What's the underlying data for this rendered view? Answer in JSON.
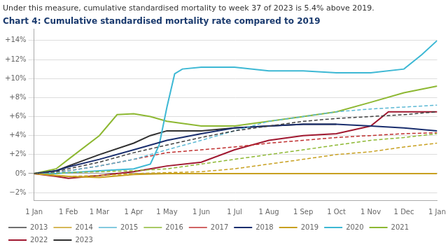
{
  "chart_data": {
    "type": "line",
    "subtitle": "Under this measure, cumulative standardised mortality to week 37 of 2023 is 5.4% above 2019.",
    "title": "Chart 4: Cumulative standardised mortality rate compared to 2019",
    "xlim": [
      0,
      364
    ],
    "xticks": [
      {
        "value": 0,
        "label": "1 Jan"
      },
      {
        "value": 31,
        "label": "1 Feb"
      },
      {
        "value": 59,
        "label": "1 Mar"
      },
      {
        "value": 90,
        "label": "1 Apr"
      },
      {
        "value": 120,
        "label": "1 May"
      },
      {
        "value": 151,
        "label": "1 Jun"
      },
      {
        "value": 181,
        "label": "1 Jul"
      },
      {
        "value": 212,
        "label": "1 Aug"
      },
      {
        "value": 243,
        "label": "1 Sep"
      },
      {
        "value": 273,
        "label": "1 Oct"
      },
      {
        "value": 304,
        "label": "1 Nov"
      },
      {
        "value": 334,
        "label": "1 Dec"
      },
      {
        "value": 364,
        "label": "1 Jan"
      }
    ],
    "ylim": [
      -2.8,
      15.2
    ],
    "yticks": [
      {
        "value": -2,
        "label": "−2%"
      },
      {
        "value": 0,
        "label": "0%"
      },
      {
        "value": 2,
        "label": "+2%"
      },
      {
        "value": 4,
        "label": "+4%"
      },
      {
        "value": 6,
        "label": "+6%"
      },
      {
        "value": 8,
        "label": "+8%"
      },
      {
        "value": 10,
        "label": "+10%"
      },
      {
        "value": 12,
        "label": "+12%"
      },
      {
        "value": 14,
        "label": "+14%"
      }
    ],
    "grid": true,
    "legend": "bottom",
    "series": [
      {
        "name": "2013",
        "color": "#404040",
        "line_style": "dashed",
        "x": [
          0,
          20,
          31,
          59,
          90,
          120,
          151,
          181,
          212,
          243,
          273,
          304,
          334,
          364
        ],
        "values": [
          0,
          0.2,
          0.5,
          1.2,
          2.2,
          3.0,
          3.8,
          4.5,
          5.0,
          5.5,
          5.8,
          6.0,
          6.2,
          6.5
        ]
      },
      {
        "name": "2014",
        "color": "#c8a020",
        "line_style": "dashed",
        "x": [
          0,
          20,
          31,
          59,
          90,
          120,
          151,
          181,
          212,
          243,
          273,
          304,
          334,
          364
        ],
        "values": [
          0,
          -0.2,
          -0.3,
          -0.2,
          0.0,
          0.1,
          0.2,
          0.5,
          1.0,
          1.5,
          2.0,
          2.3,
          2.8,
          3.2
        ]
      },
      {
        "name": "2015",
        "color": "#5bb8d4",
        "line_style": "dashed",
        "x": [
          0,
          20,
          31,
          59,
          90,
          120,
          151,
          181,
          212,
          243,
          273,
          304,
          334,
          364
        ],
        "values": [
          0,
          0.1,
          0.3,
          0.8,
          1.5,
          2.5,
          3.5,
          4.5,
          5.5,
          6.0,
          6.5,
          6.8,
          7.0,
          7.2
        ]
      },
      {
        "name": "2016",
        "color": "#8db832",
        "line_style": "dashed",
        "x": [
          0,
          20,
          31,
          59,
          90,
          120,
          151,
          181,
          212,
          243,
          273,
          304,
          334,
          364
        ],
        "values": [
          0,
          0.0,
          0.1,
          0.2,
          0.3,
          0.5,
          1.0,
          1.5,
          2.0,
          2.5,
          3.0,
          3.5,
          3.8,
          4.2
        ]
      },
      {
        "name": "2017",
        "color": "#c03030",
        "line_style": "dashed",
        "x": [
          0,
          20,
          31,
          59,
          90,
          120,
          151,
          181,
          212,
          243,
          273,
          304,
          334,
          364
        ],
        "values": [
          0,
          0.1,
          0.3,
          0.8,
          1.5,
          2.2,
          2.5,
          2.8,
          3.2,
          3.5,
          3.8,
          4.0,
          4.2,
          4.3
        ]
      },
      {
        "name": "2018",
        "color": "#1a2e6e",
        "line_style": "solid",
        "x": [
          0,
          20,
          31,
          59,
          90,
          120,
          151,
          181,
          212,
          243,
          273,
          304,
          334,
          364
        ],
        "values": [
          0,
          0.3,
          0.7,
          1.5,
          2.5,
          3.5,
          4.2,
          4.8,
          5.0,
          5.2,
          5.2,
          5.0,
          4.8,
          4.5
        ]
      },
      {
        "name": "2019",
        "color": "#c8a020",
        "line_style": "solid",
        "x": [
          0,
          20,
          31,
          59,
          90,
          120,
          151,
          181,
          212,
          243,
          273,
          304,
          334,
          364
        ],
        "values": [
          0,
          -0.2,
          -0.3,
          -0.4,
          -0.1,
          0.0,
          0.0,
          0.0,
          0.0,
          0.0,
          0.0,
          0.0,
          0.0,
          0.0
        ]
      },
      {
        "name": "2020",
        "color": "#3db8d4",
        "line_style": "solid",
        "x": [
          0,
          20,
          31,
          59,
          90,
          105,
          113,
          120,
          127,
          134,
          151,
          181,
          212,
          243,
          273,
          304,
          334,
          350,
          364
        ],
        "values": [
          0,
          0.0,
          0.1,
          0.3,
          0.5,
          1.0,
          3.0,
          7.0,
          10.5,
          11.0,
          11.2,
          11.2,
          10.8,
          10.8,
          10.6,
          10.6,
          11.0,
          12.5,
          14.0
        ]
      },
      {
        "name": "2021",
        "color": "#8db832",
        "line_style": "solid",
        "x": [
          0,
          20,
          31,
          59,
          75,
          90,
          105,
          120,
          151,
          181,
          212,
          243,
          273,
          304,
          334,
          364
        ],
        "values": [
          0,
          0.5,
          1.5,
          4.0,
          6.2,
          6.3,
          6.0,
          5.5,
          5.0,
          5.0,
          5.5,
          6.0,
          6.5,
          7.5,
          8.5,
          9.2
        ]
      },
      {
        "name": "2022",
        "color": "#a01830",
        "line_style": "solid",
        "x": [
          0,
          20,
          31,
          59,
          90,
          105,
          120,
          151,
          181,
          212,
          243,
          273,
          304,
          320,
          334,
          364
        ],
        "values": [
          0,
          -0.3,
          -0.5,
          -0.2,
          0.2,
          0.5,
          0.8,
          1.2,
          2.5,
          3.5,
          4.0,
          4.2,
          5.0,
          6.5,
          6.5,
          6.5
        ]
      },
      {
        "name": "2023",
        "color": "#303030",
        "line_style": "solid",
        "x": [
          0,
          20,
          31,
          59,
          90,
          105,
          120,
          151,
          181,
          212,
          243,
          273
        ],
        "values": [
          0,
          0.3,
          0.8,
          2.0,
          3.2,
          4.0,
          4.5,
          4.5,
          4.8,
          5.0,
          5.2,
          5.2
        ]
      }
    ]
  }
}
